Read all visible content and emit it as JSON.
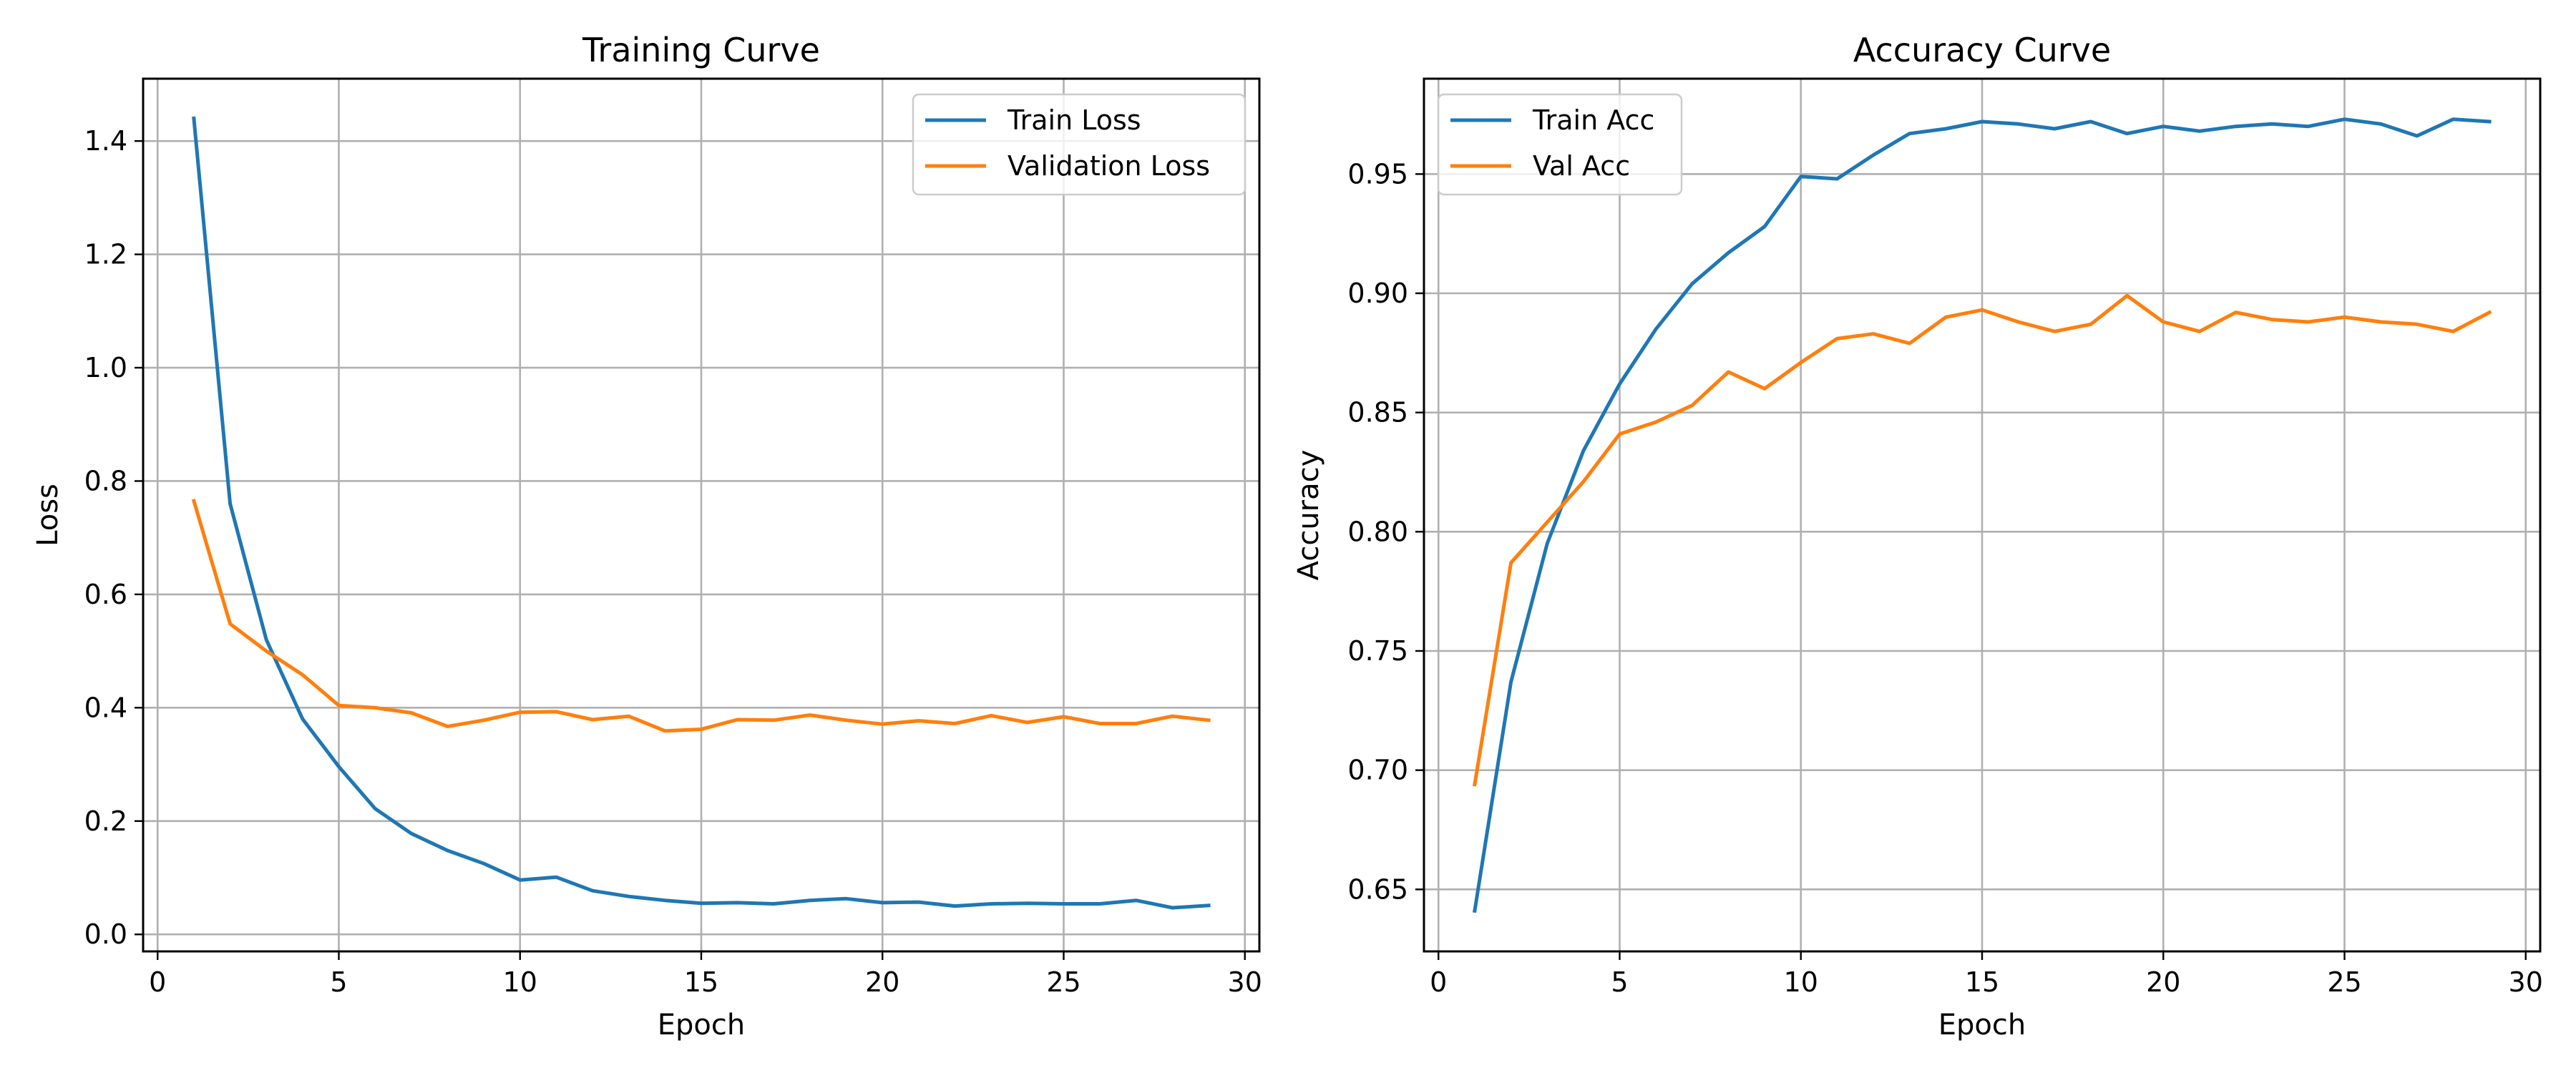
{
  "colors": {
    "series_1": "#1f77b4",
    "series_2": "#ff7f0e",
    "grid": "#b0b0b0",
    "legend_border": "#cccccc",
    "background": "#ffffff"
  },
  "chart_data": [
    {
      "type": "line",
      "title": "Training Curve",
      "xlabel": "Epoch",
      "ylabel": "Loss",
      "xlim": [
        -0.4,
        30.4
      ],
      "ylim": [
        -0.03,
        1.51
      ],
      "xticks": [
        0,
        5,
        10,
        15,
        20,
        25,
        30
      ],
      "yticks": [
        0.0,
        0.2,
        0.4,
        0.6,
        0.8,
        1.0,
        1.2,
        1.4
      ],
      "xtick_labels": [
        "0",
        "5",
        "10",
        "15",
        "20",
        "25",
        "30"
      ],
      "ytick_labels": [
        "0.0",
        "0.2",
        "0.4",
        "0.6",
        "0.8",
        "1.0",
        "1.2",
        "1.4"
      ],
      "grid": true,
      "legend_position": "top-right",
      "x": [
        1,
        2,
        3,
        4,
        5,
        6,
        7,
        8,
        9,
        10,
        11,
        12,
        13,
        14,
        15,
        16,
        17,
        18,
        19,
        20,
        21,
        22,
        23,
        24,
        25,
        26,
        27,
        28,
        29
      ],
      "series": [
        {
          "name": "Train Loss",
          "color": "#1f77b4",
          "values": [
            1.44,
            0.76,
            0.52,
            0.38,
            0.296,
            0.222,
            0.178,
            0.148,
            0.125,
            0.096,
            0.101,
            0.077,
            0.067,
            0.06,
            0.055,
            0.056,
            0.054,
            0.06,
            0.063,
            0.056,
            0.057,
            0.05,
            0.054,
            0.055,
            0.054,
            0.054,
            0.06,
            0.047,
            0.051
          ]
        },
        {
          "name": "Validation Loss",
          "color": "#ff7f0e",
          "values": [
            0.765,
            0.548,
            0.5,
            0.458,
            0.404,
            0.4,
            0.391,
            0.367,
            0.378,
            0.392,
            0.393,
            0.379,
            0.385,
            0.359,
            0.362,
            0.379,
            0.378,
            0.387,
            0.378,
            0.371,
            0.377,
            0.372,
            0.386,
            0.374,
            0.384,
            0.372,
            0.372,
            0.385,
            0.378
          ]
        }
      ]
    },
    {
      "type": "line",
      "title": "Accuracy Curve",
      "xlabel": "Epoch",
      "ylabel": "Accuracy",
      "xlim": [
        -0.4,
        30.4
      ],
      "ylim": [
        0.624,
        0.99
      ],
      "xticks": [
        0,
        5,
        10,
        15,
        20,
        25,
        30
      ],
      "yticks": [
        0.65,
        0.7,
        0.75,
        0.8,
        0.85,
        0.9,
        0.95
      ],
      "xtick_labels": [
        "0",
        "5",
        "10",
        "15",
        "20",
        "25",
        "30"
      ],
      "ytick_labels": [
        "0.65",
        "0.70",
        "0.75",
        "0.80",
        "0.85",
        "0.90",
        "0.95"
      ],
      "grid": true,
      "legend_position": "top-left",
      "x": [
        1,
        2,
        3,
        4,
        5,
        6,
        7,
        8,
        9,
        10,
        11,
        12,
        13,
        14,
        15,
        16,
        17,
        18,
        19,
        20,
        21,
        22,
        23,
        24,
        25,
        26,
        27,
        28,
        29
      ],
      "series": [
        {
          "name": "Train Acc",
          "color": "#1f77b4",
          "values": [
            0.641,
            0.737,
            0.795,
            0.834,
            0.862,
            0.885,
            0.904,
            0.917,
            0.928,
            0.949,
            0.948,
            0.958,
            0.967,
            0.969,
            0.972,
            0.971,
            0.969,
            0.972,
            0.967,
            0.97,
            0.968,
            0.97,
            0.971,
            0.97,
            0.973,
            0.971,
            0.966,
            0.973,
            0.972
          ]
        },
        {
          "name": "Val Acc",
          "color": "#ff7f0e",
          "values": [
            0.694,
            0.787,
            0.804,
            0.821,
            0.841,
            0.846,
            0.853,
            0.867,
            0.86,
            0.871,
            0.881,
            0.883,
            0.879,
            0.89,
            0.893,
            0.888,
            0.884,
            0.887,
            0.899,
            0.888,
            0.884,
            0.892,
            0.889,
            0.888,
            0.89,
            0.888,
            0.887,
            0.884,
            0.892
          ]
        }
      ]
    }
  ]
}
